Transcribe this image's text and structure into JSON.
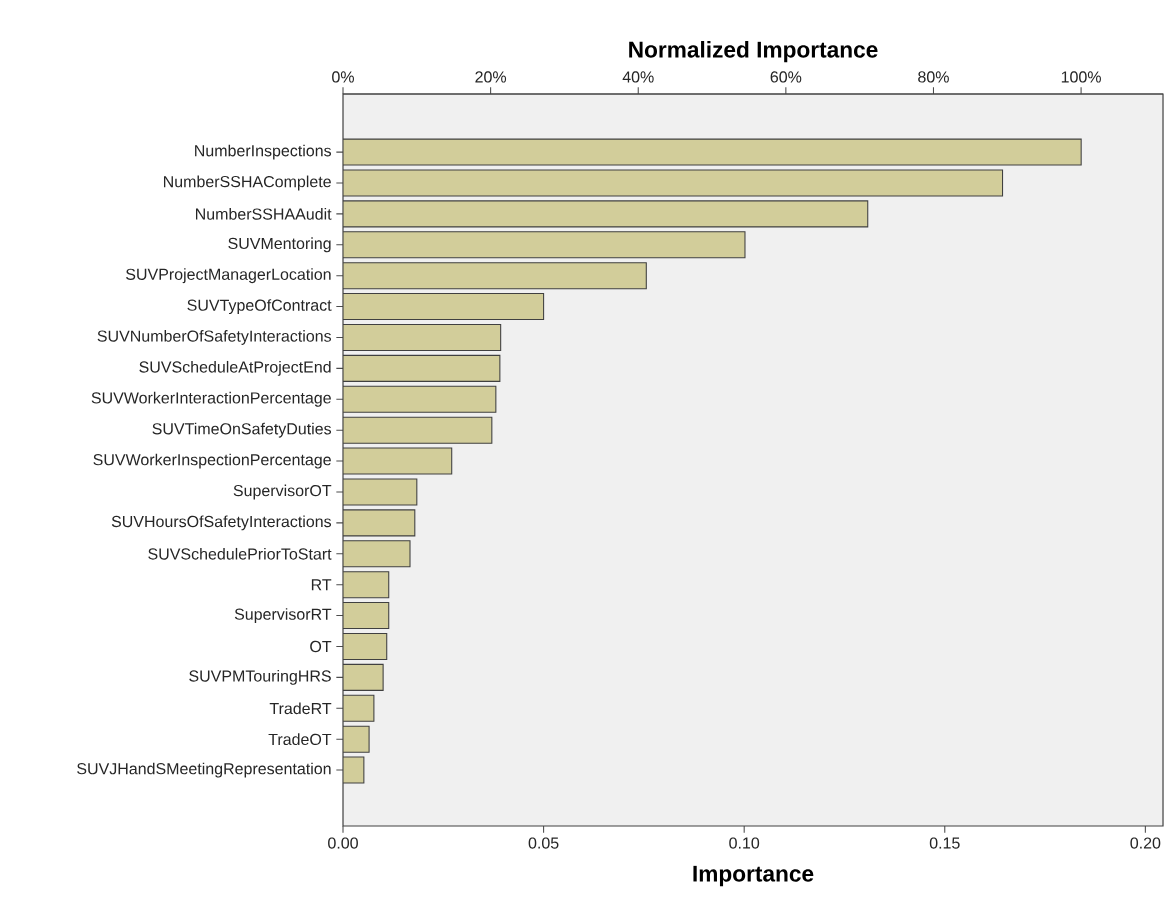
{
  "chart_data": {
    "type": "bar",
    "orientation": "horizontal",
    "x2label": "Normalized Importance",
    "xlabel": "Importance",
    "categories": [
      "NumberInspections",
      "NumberSSHAComplete",
      "NumberSSHAAudit",
      "SUVMentoring",
      "SUVProjectManagerLocation",
      "SUVTypeOfContract",
      "SUVNumberOfSafetyInteractions",
      "SUVScheduleAtProjectEnd",
      "SUVWorkerInteractionPercentage",
      "SUVTimeOnSafetyDuties",
      "SUVWorkerInspectionPercentage",
      "SupervisorOT",
      "SUVHoursOfSafetyInteractions",
      "SUVSchedulePriorToStart",
      "RT",
      "SupervisorRT",
      "OT",
      "SUVPMTouringHRS",
      "TradeRT",
      "TradeOT",
      "SUVJHandSMeetingRepresentation"
    ],
    "values": [
      0.184,
      0.1644,
      0.1308,
      0.1002,
      0.0756,
      0.05,
      0.0393,
      0.0391,
      0.0381,
      0.0371,
      0.0271,
      0.0184,
      0.0179,
      0.0167,
      0.0114,
      0.0114,
      0.0109,
      0.01,
      0.0077,
      0.0065,
      0.0052
    ],
    "color": "#d2cd9a",
    "xlim": [
      0,
      0.2044
    ],
    "xticks": [
      {
        "value": 0,
        "label": "0.00"
      },
      {
        "value": 0.05,
        "label": "0.05"
      },
      {
        "value": 0.1,
        "label": "0.10"
      },
      {
        "value": 0.15,
        "label": "0.15"
      },
      {
        "value": 0.2,
        "label": "0.20"
      }
    ],
    "x2lim": [
      0,
      111.1
    ],
    "x2ticks": [
      {
        "value": 0,
        "label": "0%"
      },
      {
        "value": 20,
        "label": "20%"
      },
      {
        "value": 40,
        "label": "40%"
      },
      {
        "value": 60,
        "label": "60%"
      },
      {
        "value": 80,
        "label": "80%"
      },
      {
        "value": 100,
        "label": "100%"
      }
    ],
    "grid": false
  }
}
